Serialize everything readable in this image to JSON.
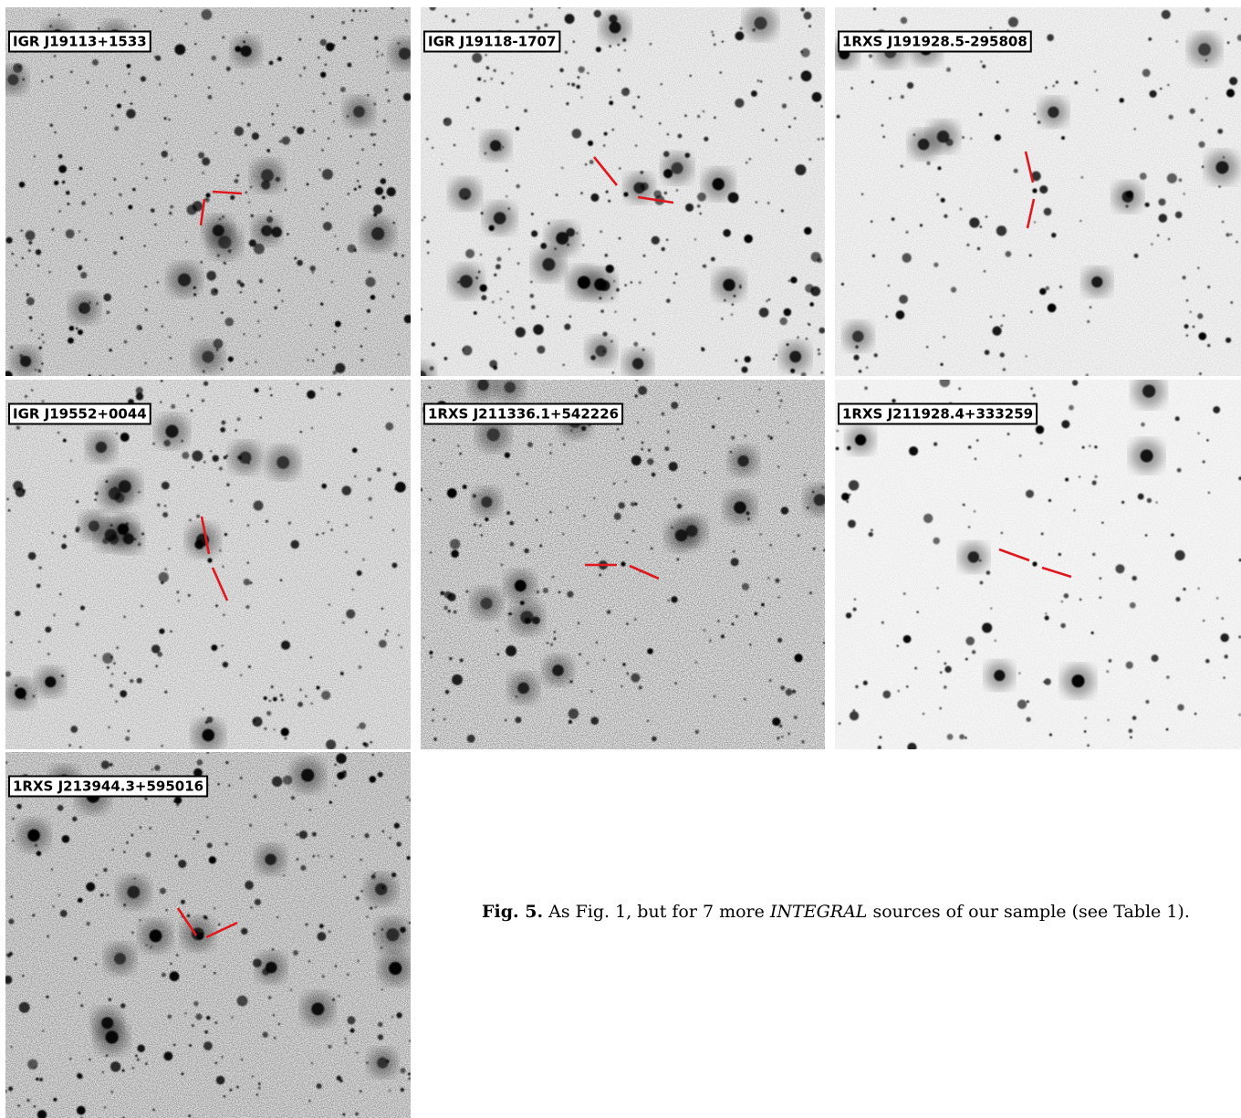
{
  "panels": [
    {
      "label": "IGR J19113+1533"
    },
    {
      "label": "IGR J19118-1707"
    },
    {
      "label": "1RXS J191928.5-295808"
    },
    {
      "label": "IGR J19552+0044"
    },
    {
      "label": "1RXS J211336.1+542226"
    },
    {
      "label": "1RXS J211928.4+333259"
    },
    {
      "label": "1RXS J213944.3+595016"
    }
  ],
  "caption": {
    "figure_label": "Fig. 5.",
    "text_before": "As Fig. 1, but for 7 more",
    "emphasis": "INTEGRAL",
    "text_after": "sources of our sample (see Table 1)."
  }
}
